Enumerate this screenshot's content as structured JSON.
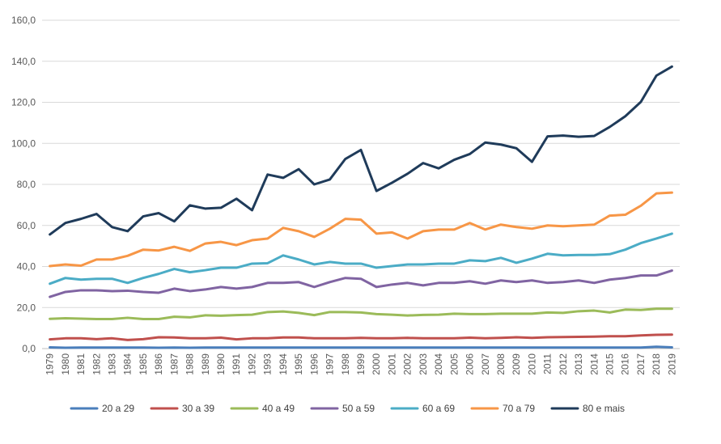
{
  "chart_data": {
    "type": "line",
    "title": "",
    "xlabel": "",
    "ylabel": "",
    "ylim": [
      0,
      160
    ],
    "y_ticks": [
      "0,0",
      "20,0",
      "40,0",
      "60,0",
      "80,0",
      "100,0",
      "120,0",
      "140,0",
      "160,0"
    ],
    "y_tick_values": [
      0,
      20,
      40,
      60,
      80,
      100,
      120,
      140,
      160
    ],
    "x_tick_rotation": "vertical",
    "grid": "horizontal",
    "legend_position": "bottom",
    "x": [
      "1979",
      "1980",
      "1981",
      "1982",
      "1983",
      "1984",
      "1985",
      "1986",
      "1987",
      "1988",
      "1989",
      "1990",
      "1991",
      "1992",
      "1993",
      "1994",
      "1995",
      "1996",
      "1997",
      "1998",
      "1999",
      "2000",
      "2001",
      "2002",
      "2003",
      "2004",
      "2005",
      "2006",
      "2007",
      "2008",
      "2009",
      "2010",
      "2011",
      "2012",
      "2013",
      "2014",
      "2015",
      "2016",
      "2017",
      "2018",
      "2019"
    ],
    "series": [
      {
        "name": "20 a 29",
        "color": "#4a7ebb",
        "values": [
          0.6,
          0.4,
          0.5,
          0.5,
          0.5,
          0.5,
          0.5,
          0.4,
          0.5,
          0.4,
          0.5,
          0.5,
          0.5,
          0.5,
          0.5,
          0.5,
          0.5,
          0.5,
          0.5,
          0.5,
          0.5,
          0.5,
          0.5,
          0.5,
          0.5,
          0.5,
          0.5,
          0.5,
          0.5,
          0.5,
          0.5,
          0.5,
          0.5,
          0.5,
          0.5,
          0.5,
          0.5,
          0.5,
          0.5,
          0.9,
          0.6
        ]
      },
      {
        "name": "30 a 39",
        "color": "#c0504d",
        "values": [
          4.5,
          5.0,
          5.0,
          4.6,
          5.0,
          4.2,
          4.6,
          5.5,
          5.4,
          5.0,
          5.0,
          5.3,
          4.5,
          5.0,
          5.0,
          5.4,
          5.4,
          5.0,
          5.0,
          5.0,
          5.2,
          5.0,
          5.0,
          5.2,
          5.0,
          5.0,
          5.0,
          5.3,
          5.0,
          5.2,
          5.5,
          5.2,
          5.5,
          5.6,
          5.7,
          5.8,
          6.0,
          6.0,
          6.4,
          6.7,
          6.8
        ]
      },
      {
        "name": "40 a 49",
        "color": "#9bbb59",
        "values": [
          14.5,
          14.8,
          14.6,
          14.4,
          14.4,
          15.0,
          14.4,
          14.4,
          15.5,
          15.2,
          16.2,
          16.0,
          16.3,
          16.5,
          17.8,
          18.1,
          17.4,
          16.3,
          17.8,
          17.8,
          17.6,
          16.8,
          16.5,
          16.1,
          16.4,
          16.5,
          17.0,
          16.8,
          16.8,
          17.0,
          17.0,
          17.0,
          17.6,
          17.4,
          18.2,
          18.5,
          17.6,
          19.0,
          18.8,
          19.4,
          19.4
        ]
      },
      {
        "name": "50 a 59",
        "color": "#8064a2",
        "values": [
          25.2,
          27.6,
          28.4,
          28.4,
          28.0,
          28.2,
          27.6,
          27.2,
          29.2,
          28.0,
          28.8,
          30.0,
          29.2,
          30.0,
          32.0,
          32.0,
          32.4,
          30.0,
          32.4,
          34.4,
          34.0,
          30.0,
          31.2,
          32.0,
          30.8,
          32.0,
          32.0,
          32.8,
          31.6,
          33.2,
          32.4,
          33.2,
          32.0,
          32.4,
          33.2,
          32.0,
          33.6,
          34.4,
          35.6,
          35.6,
          38.0
        ]
      },
      {
        "name": "60 a 69",
        "color": "#4bacc6",
        "values": [
          31.6,
          34.4,
          33.6,
          34.0,
          34.0,
          32.0,
          34.4,
          36.4,
          38.8,
          37.2,
          38.2,
          39.4,
          39.4,
          41.4,
          41.6,
          45.4,
          43.4,
          41.0,
          42.2,
          41.4,
          41.4,
          39.4,
          40.2,
          41.0,
          41.0,
          41.4,
          41.4,
          43.0,
          42.6,
          44.2,
          41.8,
          43.8,
          46.2,
          45.4,
          45.6,
          45.6,
          46.0,
          48.2,
          51.4,
          53.6,
          56.0
        ]
      },
      {
        "name": "70 a 79",
        "color": "#f79646",
        "values": [
          40.2,
          41.0,
          40.4,
          43.4,
          43.4,
          45.2,
          48.2,
          47.8,
          49.6,
          47.6,
          51.2,
          52.0,
          50.4,
          52.8,
          53.6,
          58.8,
          57.2,
          54.4,
          58.4,
          63.2,
          62.8,
          56.0,
          56.6,
          53.6,
          57.2,
          58.0,
          58.0,
          61.2,
          58.0,
          60.4,
          59.2,
          58.4,
          60.0,
          59.6,
          60.0,
          60.4,
          64.8,
          65.2,
          69.6,
          75.6,
          76.0
        ]
      },
      {
        "name": "80 e mais",
        "color": "#1f3b5a",
        "values": [
          55.6,
          61.2,
          63.2,
          65.6,
          59.2,
          57.2,
          64.4,
          66.0,
          62.0,
          69.8,
          68.2,
          68.6,
          73.0,
          67.4,
          84.8,
          83.2,
          87.4,
          80.0,
          82.4,
          92.4,
          96.8,
          76.8,
          80.8,
          85.2,
          90.4,
          87.8,
          92.0,
          94.8,
          100.4,
          99.4,
          97.6,
          91.0,
          103.4,
          103.8,
          103.2,
          103.6,
          108.0,
          113.2,
          120.2,
          133.0,
          137.4
        ]
      }
    ]
  }
}
